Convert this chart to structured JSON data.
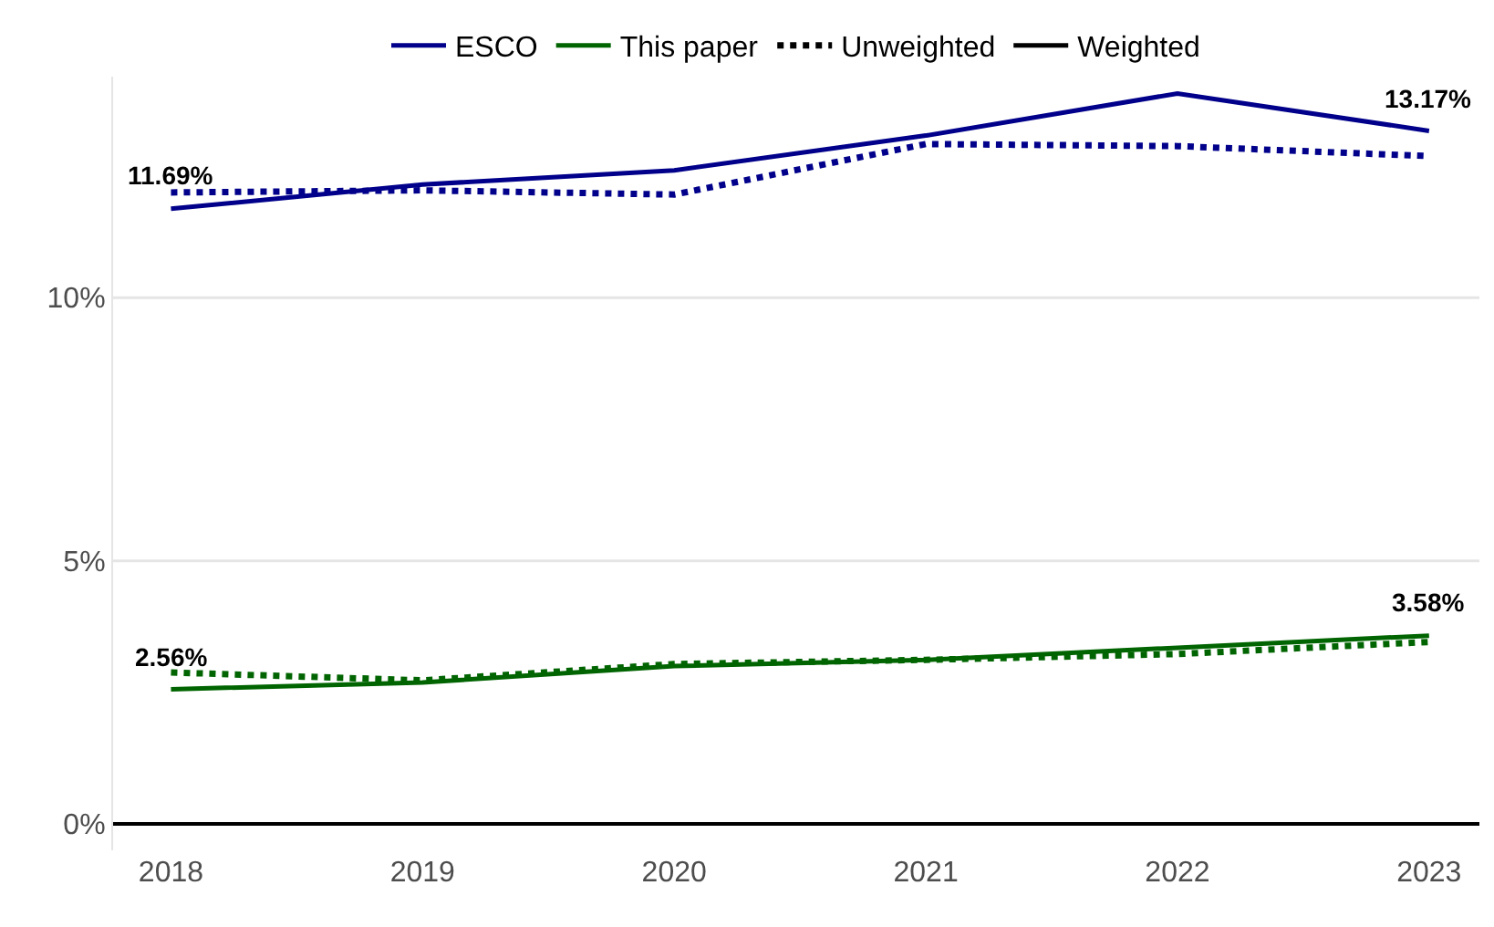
{
  "chart_data": {
    "type": "line",
    "x": [
      2018,
      2019,
      2020,
      2021,
      2022,
      2023
    ],
    "series": [
      {
        "name": "ESCO",
        "color": "#00008b",
        "line_style": "solid",
        "values": [
          11.69,
          12.15,
          12.42,
          13.08,
          13.88,
          13.17
        ],
        "value_labels": [
          "11.69%",
          null,
          null,
          null,
          null,
          "13.17%"
        ]
      },
      {
        "name": "This paper",
        "color": "#006400",
        "line_style": "solid",
        "values": [
          2.56,
          2.69,
          3.0,
          3.12,
          3.35,
          3.58
        ],
        "value_labels": [
          "2.56%",
          null,
          null,
          null,
          null,
          "3.58%"
        ]
      },
      {
        "color": "#00008b",
        "line_style": "dotted",
        "values": [
          12.0,
          12.04,
          11.96,
          12.92,
          12.88,
          12.69
        ]
      },
      {
        "color": "#006400",
        "line_style": "dotted",
        "values": [
          2.88,
          2.73,
          3.04,
          3.12,
          3.23,
          3.46
        ]
      },
      {
        "name": "Unweighted",
        "color": "#000000",
        "line_style": "dotted",
        "values": [
          null,
          null,
          null,
          null,
          null,
          null
        ]
      },
      {
        "name": "Weighted",
        "color": "#000000",
        "line_style": "solid",
        "values": [
          null,
          null,
          null,
          null,
          null,
          null
        ]
      }
    ],
    "xlim": [
      2017.77,
      2023.2
    ],
    "xticks": [
      2018,
      2019,
      2020,
      2021,
      2022,
      2023
    ],
    "ylim": [
      -0.5,
      14.2
    ],
    "yticks": [
      {
        "value": 0,
        "label": "0%"
      },
      {
        "value": 5,
        "label": "5%"
      },
      {
        "value": 10,
        "label": "10%"
      }
    ],
    "grid": "y",
    "legend": "top",
    "marker": "none"
  }
}
